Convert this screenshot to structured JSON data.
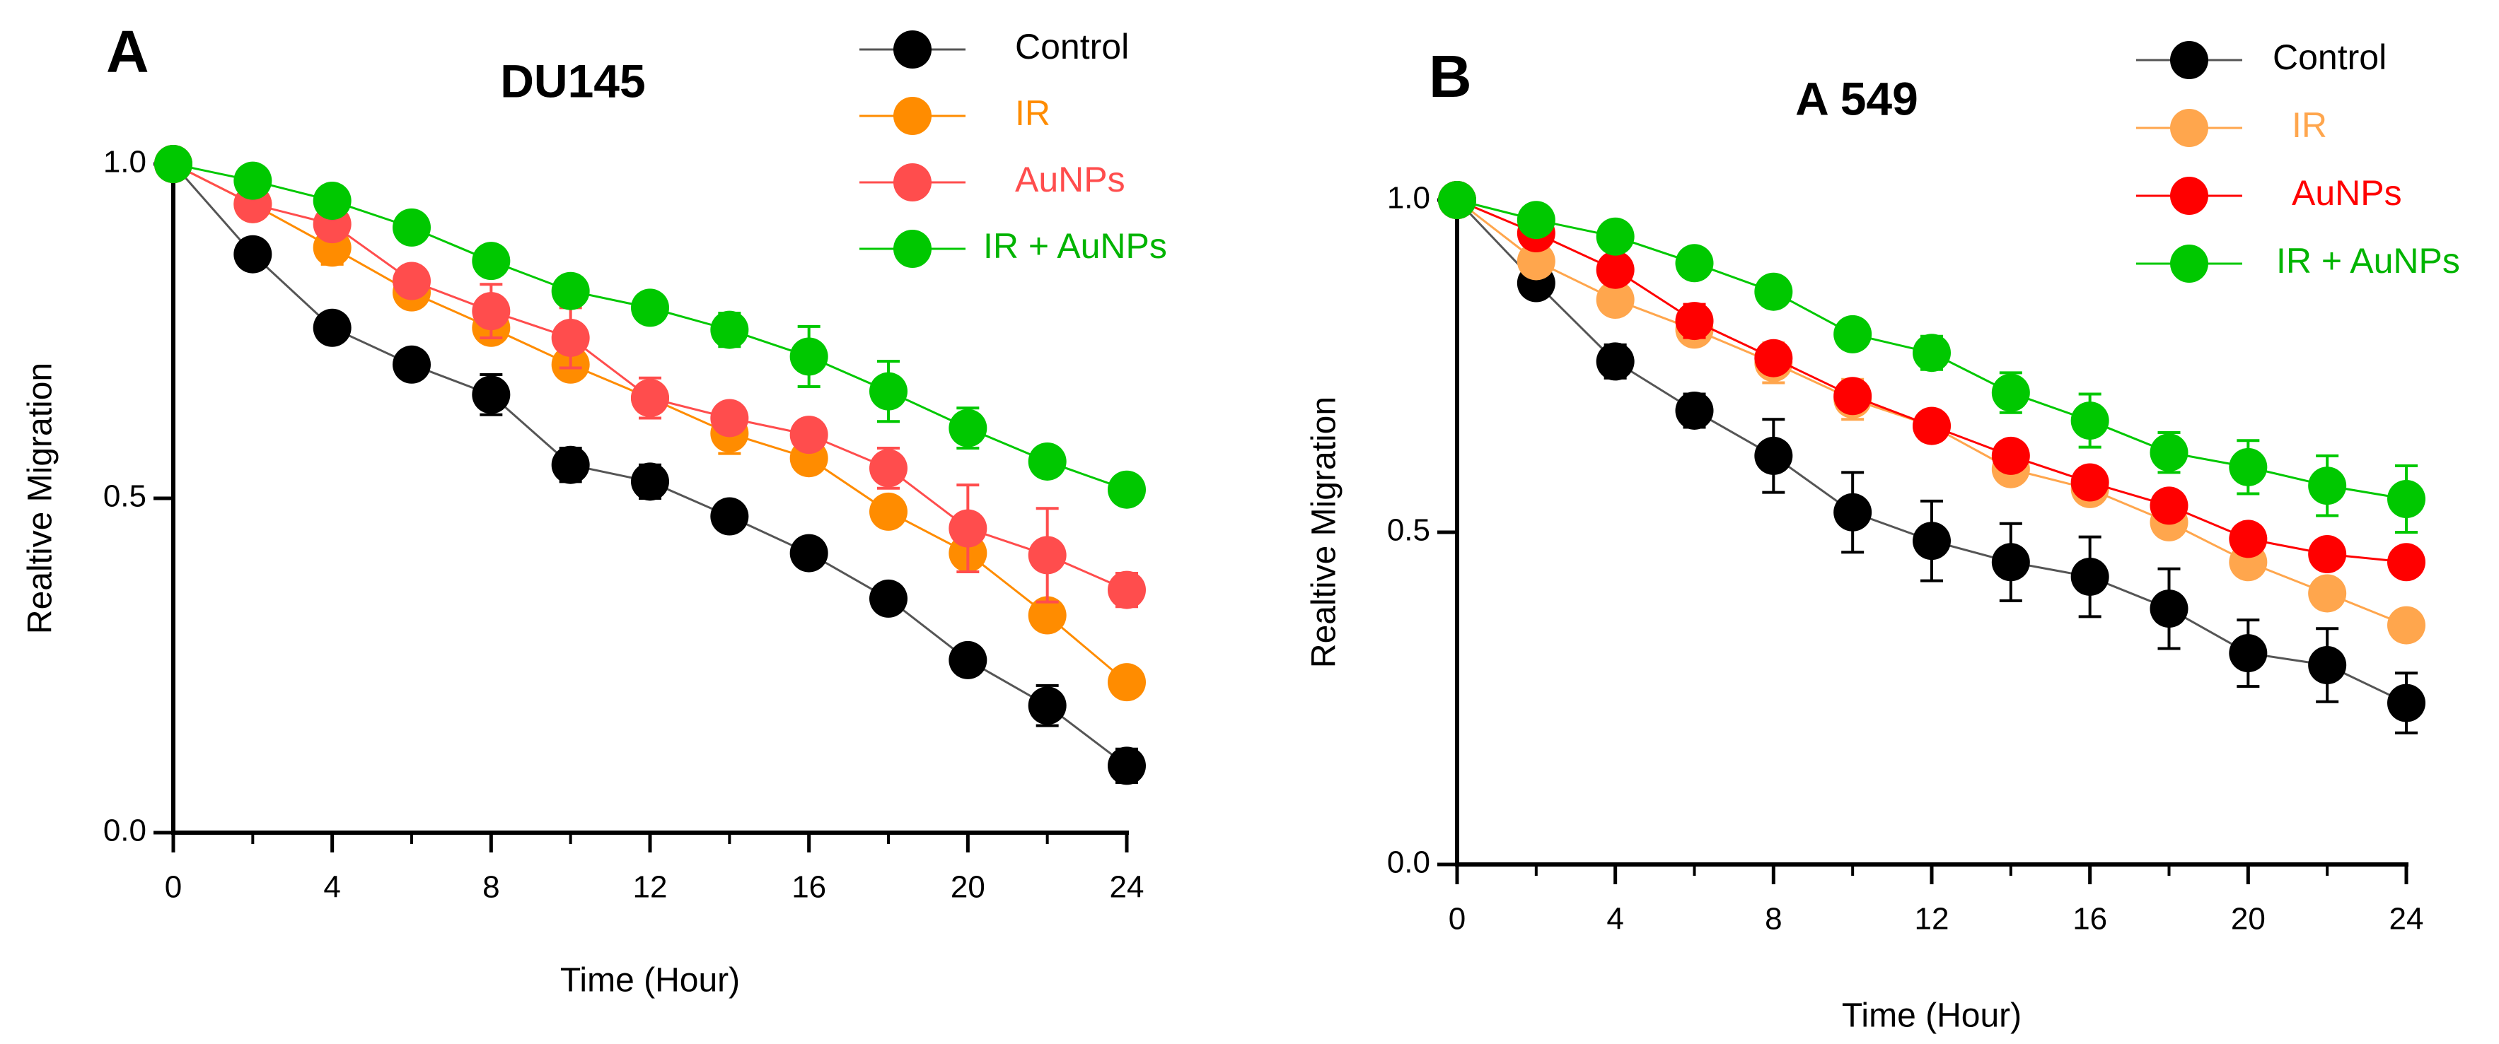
{
  "colors": {
    "axis": "#000000",
    "control": "#000000",
    "control_line": "#555555",
    "ir": "#FF8C00",
    "ir_b": "#FFA64D",
    "aunps": "#FF4D4D",
    "aunps_b": "#FF0000",
    "combo": "#00C800",
    "combo_text": "#00B400"
  },
  "chart_data": [
    {
      "type": "line",
      "panel_label": "A",
      "title": "DU145",
      "xlabel": "Time (Hour)",
      "ylabel": "Realtive Migration",
      "xlim": [
        0,
        24
      ],
      "ylim": [
        0,
        1
      ],
      "x_ticks": [
        "0",
        "4",
        "8",
        "12",
        "16",
        "20",
        "24"
      ],
      "y_ticks": [
        "0.0",
        "0.5",
        "1.0"
      ],
      "x": [
        0,
        2,
        4,
        6,
        8,
        10,
        12,
        14,
        16,
        18,
        20,
        22,
        24
      ],
      "series": [
        {
          "name": "Control",
          "color_key": "control",
          "values": [
            1.0,
            0.865,
            0.755,
            0.7,
            0.655,
            0.55,
            0.525,
            0.473,
            0.418,
            0.35,
            0.258,
            0.19,
            0.1
          ],
          "errors": [
            0,
            0.01,
            0.01,
            0.01,
            0.03,
            0.025,
            0.025,
            0.02,
            0.02,
            0.01,
            0.01,
            0.03,
            0.025
          ]
        },
        {
          "name": "IR",
          "color_key": "ir",
          "values": [
            1.0,
            0.94,
            0.875,
            0.808,
            0.755,
            0.7,
            0.65,
            0.597,
            0.56,
            0.48,
            0.418,
            0.325,
            0.225
          ],
          "errors": [
            0,
            0.01,
            0.025,
            0.02,
            0.02,
            0.015,
            0.02,
            0.03,
            0.015,
            0.02,
            0.02,
            0.02,
            0.01
          ]
        },
        {
          "name": "AuNPs",
          "color_key": "aunps",
          "values": [
            1.0,
            0.94,
            0.91,
            0.825,
            0.78,
            0.74,
            0.65,
            0.62,
            0.595,
            0.545,
            0.455,
            0.415,
            0.363
          ],
          "errors": [
            0,
            0.01,
            0.01,
            0.02,
            0.04,
            0.045,
            0.03,
            0.01,
            0.01,
            0.03,
            0.065,
            0.07,
            0.025
          ]
        },
        {
          "name": "IR + AuNPs",
          "color_key": "combo",
          "values": [
            1.0,
            0.975,
            0.945,
            0.905,
            0.855,
            0.81,
            0.785,
            0.752,
            0.712,
            0.66,
            0.605,
            0.555,
            0.513
          ],
          "errors": [
            0,
            0.01,
            0.01,
            0.01,
            0.01,
            0.015,
            0.015,
            0.025,
            0.045,
            0.045,
            0.03,
            0.01,
            0.02
          ]
        }
      ]
    },
    {
      "type": "line",
      "panel_label": "B",
      "title": "A 549",
      "xlabel": "Time (Hour)",
      "ylabel": "Realtive Migration",
      "xlim": [
        0,
        24
      ],
      "ylim": [
        0,
        1
      ],
      "x_ticks": [
        "0",
        "4",
        "8",
        "12",
        "16",
        "20",
        "24"
      ],
      "y_ticks": [
        "0.0",
        "0.5",
        "1.0"
      ],
      "x": [
        0,
        2,
        4,
        6,
        8,
        10,
        12,
        14,
        16,
        18,
        20,
        22,
        24
      ],
      "series": [
        {
          "name": "Control",
          "color_key": "control",
          "values": [
            1.0,
            0.875,
            0.757,
            0.683,
            0.615,
            0.53,
            0.487,
            0.455,
            0.433,
            0.385,
            0.318,
            0.3,
            0.243
          ],
          "errors": [
            0,
            0.02,
            0.025,
            0.025,
            0.055,
            0.06,
            0.06,
            0.058,
            0.06,
            0.06,
            0.05,
            0.055,
            0.045
          ]
        },
        {
          "name": "IR",
          "color_key": "ir_b",
          "values": [
            1.0,
            0.908,
            0.85,
            0.805,
            0.755,
            0.7,
            0.66,
            0.595,
            0.565,
            0.515,
            0.455,
            0.408,
            0.36
          ],
          "errors": [
            0,
            0.02,
            0.02,
            0.02,
            0.03,
            0.03,
            0.02,
            0.02,
            0.02,
            0.02,
            0.02,
            0.015,
            0.015
          ]
        },
        {
          "name": "AuNPs",
          "color_key": "aunps_b",
          "values": [
            1.0,
            0.95,
            0.895,
            0.818,
            0.762,
            0.705,
            0.66,
            0.615,
            0.575,
            0.54,
            0.49,
            0.467,
            0.455
          ],
          "errors": [
            0,
            0.015,
            0.015,
            0.025,
            0.02,
            0.02,
            0.015,
            0.02,
            0.02,
            0.02,
            0.02,
            0.01,
            0.01
          ]
        },
        {
          "name": "IR + AuNPs",
          "color_key": "combo",
          "values": [
            1.0,
            0.97,
            0.945,
            0.905,
            0.862,
            0.798,
            0.77,
            0.71,
            0.668,
            0.62,
            0.598,
            0.57,
            0.55
          ],
          "errors": [
            0,
            0.01,
            0.01,
            0.01,
            0.01,
            0.02,
            0.025,
            0.03,
            0.04,
            0.03,
            0.04,
            0.045,
            0.05
          ]
        }
      ]
    }
  ]
}
